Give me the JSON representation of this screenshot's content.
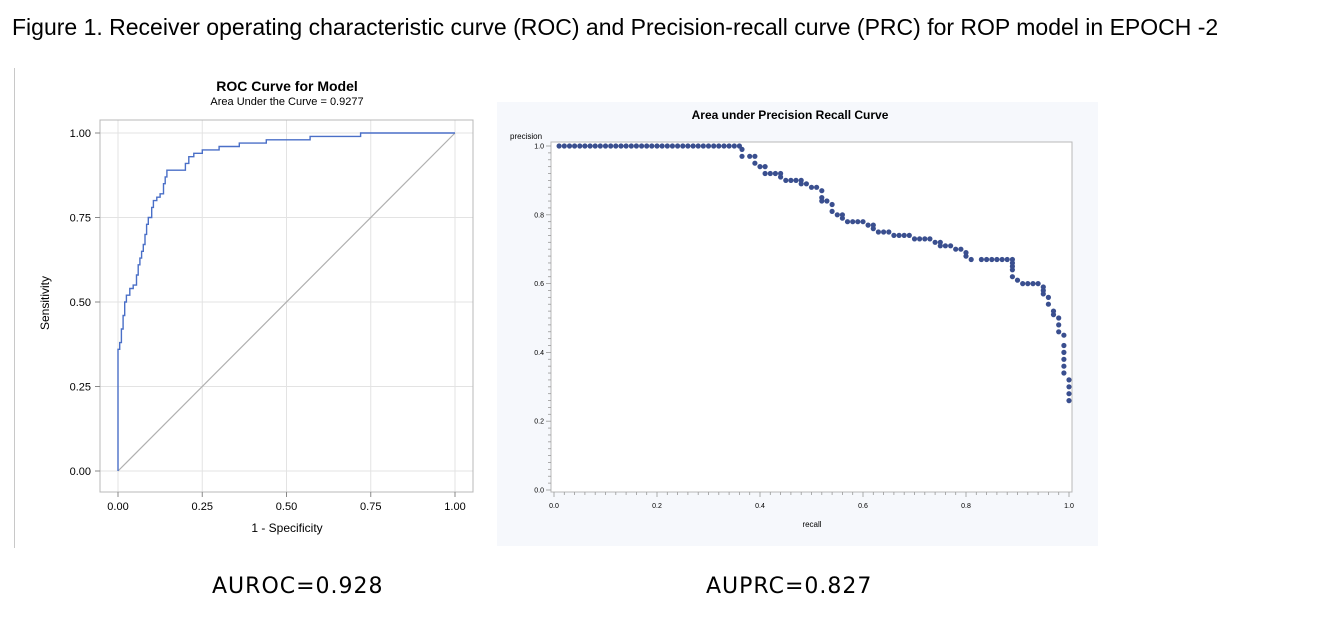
{
  "figure": {
    "caption": "Figure 1. Receiver operating characteristic curve (ROC) and Precision-recall curve (PRC) for ROP model in EPOCH -2",
    "auroc_label": "AUROC=0.928",
    "auprc_label": "AUPRC=0.827"
  },
  "colors": {
    "roc_line": "#4a6fc7",
    "diagonal": "#b0b0b0",
    "pr_marker": "#3a4f8f",
    "grid": "#e3e3e3"
  },
  "chart_data": [
    {
      "type": "line",
      "title": "ROC Curve for Model",
      "subtitle": "Area Under the Curve = 0.9277",
      "xlabel": "1 - Specificity",
      "ylabel": "Sensitivity",
      "xlim": [
        0,
        1
      ],
      "ylim": [
        0,
        1
      ],
      "grid": true,
      "xticks": [
        "0.00",
        "0.25",
        "0.50",
        "0.75",
        "1.00"
      ],
      "yticks": [
        "0.00",
        "0.25",
        "0.50",
        "0.75",
        "1.00"
      ],
      "series": [
        {
          "points": [
            [
              0,
              0
            ],
            [
              0,
              0.36
            ],
            [
              0.005,
              0.36
            ],
            [
              0.005,
              0.38
            ],
            [
              0.01,
              0.38
            ],
            [
              0.01,
              0.42
            ],
            [
              0.015,
              0.42
            ],
            [
              0.015,
              0.46
            ],
            [
              0.02,
              0.46
            ],
            [
              0.02,
              0.5
            ],
            [
              0.025,
              0.5
            ],
            [
              0.025,
              0.52
            ],
            [
              0.035,
              0.52
            ],
            [
              0.035,
              0.54
            ],
            [
              0.045,
              0.54
            ],
            [
              0.045,
              0.55
            ],
            [
              0.055,
              0.55
            ],
            [
              0.055,
              0.58
            ],
            [
              0.06,
              0.58
            ],
            [
              0.06,
              0.61
            ],
            [
              0.065,
              0.61
            ],
            [
              0.065,
              0.63
            ],
            [
              0.07,
              0.63
            ],
            [
              0.07,
              0.65
            ],
            [
              0.075,
              0.65
            ],
            [
              0.075,
              0.67
            ],
            [
              0.08,
              0.67
            ],
            [
              0.08,
              0.7
            ],
            [
              0.085,
              0.7
            ],
            [
              0.085,
              0.73
            ],
            [
              0.09,
              0.73
            ],
            [
              0.09,
              0.75
            ],
            [
              0.1,
              0.75
            ],
            [
              0.1,
              0.78
            ],
            [
              0.105,
              0.78
            ],
            [
              0.105,
              0.8
            ],
            [
              0.115,
              0.8
            ],
            [
              0.115,
              0.81
            ],
            [
              0.125,
              0.81
            ],
            [
              0.125,
              0.82
            ],
            [
              0.135,
              0.82
            ],
            [
              0.135,
              0.85
            ],
            [
              0.14,
              0.85
            ],
            [
              0.14,
              0.87
            ],
            [
              0.145,
              0.87
            ],
            [
              0.145,
              0.89
            ],
            [
              0.2,
              0.89
            ],
            [
              0.2,
              0.91
            ],
            [
              0.21,
              0.91
            ],
            [
              0.21,
              0.93
            ],
            [
              0.225,
              0.93
            ],
            [
              0.225,
              0.94
            ],
            [
              0.25,
              0.94
            ],
            [
              0.25,
              0.95
            ],
            [
              0.3,
              0.95
            ],
            [
              0.3,
              0.96
            ],
            [
              0.36,
              0.96
            ],
            [
              0.36,
              0.97
            ],
            [
              0.44,
              0.97
            ],
            [
              0.44,
              0.98
            ],
            [
              0.57,
              0.98
            ],
            [
              0.57,
              0.99
            ],
            [
              0.72,
              0.99
            ],
            [
              0.72,
              1.0
            ],
            [
              1.0,
              1.0
            ]
          ]
        },
        {
          "points": [
            [
              0,
              0
            ],
            [
              1,
              1
            ]
          ]
        }
      ]
    },
    {
      "type": "scatter",
      "title": "Area under Precision Recall Curve",
      "xlabel": "recall",
      "ylabel": "precision",
      "xlim": [
        0,
        1
      ],
      "ylim": [
        0,
        1
      ],
      "grid": false,
      "xticks": [
        "0.0",
        "0.2",
        "0.4",
        "0.6",
        "0.8",
        "1.0"
      ],
      "yticks": [
        "0.0",
        "0.2",
        "0.4",
        "0.6",
        "0.8",
        "1.0"
      ],
      "series": [
        {
          "points": [
            [
              0.01,
              1
            ],
            [
              0.02,
              1
            ],
            [
              0.03,
              1
            ],
            [
              0.04,
              1
            ],
            [
              0.05,
              1
            ],
            [
              0.06,
              1
            ],
            [
              0.07,
              1
            ],
            [
              0.08,
              1
            ],
            [
              0.09,
              1
            ],
            [
              0.1,
              1
            ],
            [
              0.11,
              1
            ],
            [
              0.12,
              1
            ],
            [
              0.13,
              1
            ],
            [
              0.14,
              1
            ],
            [
              0.15,
              1
            ],
            [
              0.16,
              1
            ],
            [
              0.17,
              1
            ],
            [
              0.18,
              1
            ],
            [
              0.19,
              1
            ],
            [
              0.2,
              1
            ],
            [
              0.21,
              1
            ],
            [
              0.22,
              1
            ],
            [
              0.23,
              1
            ],
            [
              0.24,
              1
            ],
            [
              0.25,
              1
            ],
            [
              0.26,
              1
            ],
            [
              0.27,
              1
            ],
            [
              0.28,
              1
            ],
            [
              0.29,
              1
            ],
            [
              0.3,
              1
            ],
            [
              0.31,
              1
            ],
            [
              0.32,
              1
            ],
            [
              0.33,
              1
            ],
            [
              0.34,
              1
            ],
            [
              0.35,
              1
            ],
            [
              0.36,
              1
            ],
            [
              0.365,
              0.99
            ],
            [
              0.365,
              0.97
            ],
            [
              0.38,
              0.97
            ],
            [
              0.39,
              0.97
            ],
            [
              0.39,
              0.95
            ],
            [
              0.4,
              0.94
            ],
            [
              0.41,
              0.94
            ],
            [
              0.41,
              0.92
            ],
            [
              0.42,
              0.92
            ],
            [
              0.43,
              0.92
            ],
            [
              0.44,
              0.92
            ],
            [
              0.44,
              0.91
            ],
            [
              0.45,
              0.9
            ],
            [
              0.46,
              0.9
            ],
            [
              0.47,
              0.9
            ],
            [
              0.48,
              0.9
            ],
            [
              0.48,
              0.89
            ],
            [
              0.49,
              0.89
            ],
            [
              0.5,
              0.88
            ],
            [
              0.51,
              0.88
            ],
            [
              0.52,
              0.87
            ],
            [
              0.52,
              0.85
            ],
            [
              0.52,
              0.84
            ],
            [
              0.53,
              0.84
            ],
            [
              0.54,
              0.83
            ],
            [
              0.54,
              0.81
            ],
            [
              0.55,
              0.8
            ],
            [
              0.56,
              0.8
            ],
            [
              0.56,
              0.79
            ],
            [
              0.57,
              0.78
            ],
            [
              0.58,
              0.78
            ],
            [
              0.59,
              0.78
            ],
            [
              0.6,
              0.78
            ],
            [
              0.61,
              0.77
            ],
            [
              0.62,
              0.77
            ],
            [
              0.62,
              0.76
            ],
            [
              0.63,
              0.75
            ],
            [
              0.64,
              0.75
            ],
            [
              0.65,
              0.75
            ],
            [
              0.66,
              0.74
            ],
            [
              0.67,
              0.74
            ],
            [
              0.68,
              0.74
            ],
            [
              0.69,
              0.74
            ],
            [
              0.7,
              0.73
            ],
            [
              0.71,
              0.73
            ],
            [
              0.72,
              0.73
            ],
            [
              0.73,
              0.73
            ],
            [
              0.74,
              0.72
            ],
            [
              0.75,
              0.72
            ],
            [
              0.75,
              0.71
            ],
            [
              0.76,
              0.71
            ],
            [
              0.77,
              0.71
            ],
            [
              0.78,
              0.7
            ],
            [
              0.79,
              0.7
            ],
            [
              0.8,
              0.69
            ],
            [
              0.8,
              0.68
            ],
            [
              0.81,
              0.67
            ],
            [
              0.83,
              0.67
            ],
            [
              0.84,
              0.67
            ],
            [
              0.85,
              0.67
            ],
            [
              0.86,
              0.67
            ],
            [
              0.87,
              0.67
            ],
            [
              0.88,
              0.67
            ],
            [
              0.89,
              0.67
            ],
            [
              0.89,
              0.66
            ],
            [
              0.89,
              0.65
            ],
            [
              0.89,
              0.64
            ],
            [
              0.89,
              0.62
            ],
            [
              0.9,
              0.61
            ],
            [
              0.91,
              0.6
            ],
            [
              0.92,
              0.6
            ],
            [
              0.93,
              0.6
            ],
            [
              0.94,
              0.6
            ],
            [
              0.95,
              0.59
            ],
            [
              0.95,
              0.58
            ],
            [
              0.95,
              0.57
            ],
            [
              0.96,
              0.56
            ],
            [
              0.96,
              0.54
            ],
            [
              0.97,
              0.52
            ],
            [
              0.97,
              0.51
            ],
            [
              0.98,
              0.5
            ],
            [
              0.98,
              0.48
            ],
            [
              0.98,
              0.46
            ],
            [
              0.99,
              0.45
            ],
            [
              0.99,
              0.42
            ],
            [
              0.99,
              0.4
            ],
            [
              0.99,
              0.38
            ],
            [
              0.99,
              0.36
            ],
            [
              0.99,
              0.34
            ],
            [
              1.0,
              0.32
            ],
            [
              1.0,
              0.3
            ],
            [
              1.0,
              0.28
            ],
            [
              1.0,
              0.26
            ]
          ]
        }
      ]
    }
  ]
}
